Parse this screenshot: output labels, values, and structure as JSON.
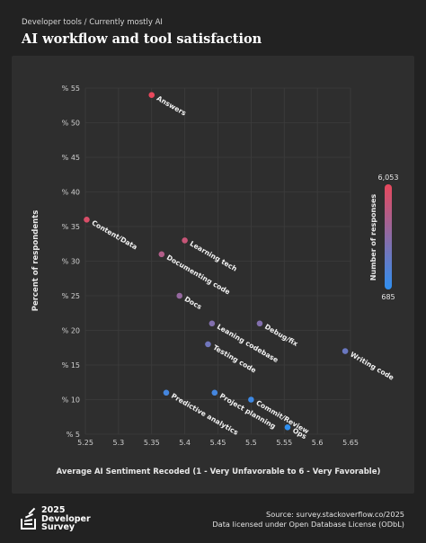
{
  "header": {
    "breadcrumb": "Developer tools / Currently mostly AI",
    "title": "AI workflow and tool satisfaction"
  },
  "footer": {
    "logo_year": "2025",
    "logo_line1": "Developer",
    "logo_line2": "Survey",
    "source": "Source: survey.stackoverflow.co/2025",
    "license": "Data licensed under Open Database License (ODbL)"
  },
  "colors": {
    "low": "#2f8ff0",
    "high": "#e8485c",
    "grid": "#3d3d3d"
  },
  "chart_data": {
    "type": "scatter",
    "xlabel": "Average AI Sentiment Recoded (1 - Very Unfavorable to 6 - Very Favorable)",
    "ylabel": "Percent of respondents",
    "xlim": [
      5.25,
      5.65
    ],
    "ylim": [
      5,
      55
    ],
    "x_ticks": [
      "5.25",
      "5.3",
      "5.35",
      "5.4",
      "5.45",
      "5.5",
      "5.55",
      "5.6",
      "5.65"
    ],
    "y_ticks": [
      "% 5",
      "% 10",
      "% 15",
      "% 20",
      "% 25",
      "% 30",
      "% 35",
      "% 40",
      "% 45",
      "% 50",
      "% 55"
    ],
    "grid": true,
    "color_legend": {
      "title": "Number of responses",
      "max_label": "6,053",
      "min_label": "685",
      "placement": "right"
    },
    "points": [
      {
        "label": "Answers",
        "x": 5.35,
        "y": 54,
        "t": 1.0
      },
      {
        "label": "Content/Data",
        "x": 5.252,
        "y": 36,
        "t": 0.92
      },
      {
        "label": "Learning tech",
        "x": 5.4,
        "y": 33,
        "t": 0.82
      },
      {
        "label": "Documenting code",
        "x": 5.365,
        "y": 31,
        "t": 0.7
      },
      {
        "label": "Docs",
        "x": 5.392,
        "y": 25,
        "t": 0.55
      },
      {
        "label": "Leaning codebase",
        "x": 5.441,
        "y": 21,
        "t": 0.45
      },
      {
        "label": "Debug/fix",
        "x": 5.513,
        "y": 21,
        "t": 0.45
      },
      {
        "label": "Testing code",
        "x": 5.435,
        "y": 18,
        "t": 0.35
      },
      {
        "label": "Writing code",
        "x": 5.642,
        "y": 17,
        "t": 0.32
      },
      {
        "label": "Predictive analytics",
        "x": 5.372,
        "y": 11,
        "t": 0.12
      },
      {
        "label": "Project planning",
        "x": 5.445,
        "y": 11,
        "t": 0.12
      },
      {
        "label": "Commit/Review",
        "x": 5.5,
        "y": 10,
        "t": 0.08
      },
      {
        "label": "Ops",
        "x": 5.555,
        "y": 6,
        "t": 0.0
      }
    ]
  }
}
